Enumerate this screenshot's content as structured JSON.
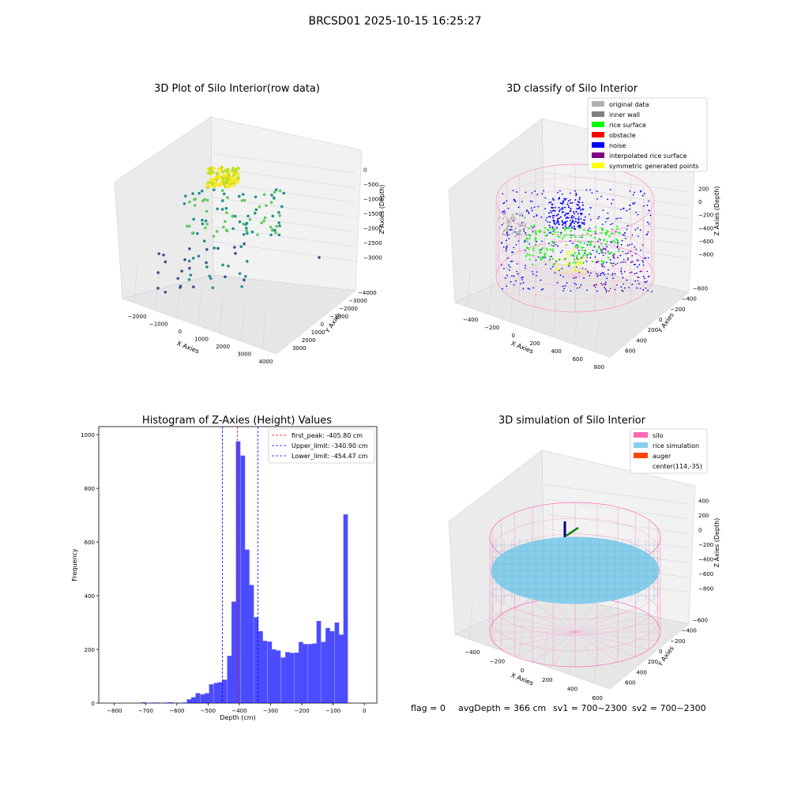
{
  "figure": {
    "title": "BRCSD01 2025-10-15 16:25:27",
    "footer": {
      "flag": "flag = 0",
      "avg_depth": "avgDepth = 366 cm",
      "sv1": "sv1 = 700~2300",
      "sv2": "sv2 = 700~2300"
    }
  },
  "chart_data": [
    {
      "type": "scatter",
      "projection": "3d",
      "title": "3D Plot of Silo Interior(row data)",
      "xlabel": "X Axies",
      "ylabel": "Y Axies",
      "zlabel": "Z Axies (Depth)",
      "x_ticks": [
        "−2000",
        "−1000",
        "0",
        "1000",
        "2000",
        "3000",
        "4000"
      ],
      "y_ticks": [
        "3000",
        "2000",
        "1000",
        "0",
        "−1000",
        "−2000",
        "−3000",
        "−4000"
      ],
      "z_ticks": [
        "0",
        "−500",
        "−1000",
        "−1500",
        "−2000",
        "−2500",
        "−3000"
      ],
      "xlim": [
        -2300,
        4100
      ],
      "ylim": [
        -4200,
        3500
      ],
      "zlim": [
        -3200,
        200
      ],
      "colormap": "viridis (low depth purple to high depth yellow)",
      "grid": true
    },
    {
      "type": "scatter",
      "projection": "3d",
      "title": "3D classify of Silo Interior",
      "xlabel": "X Axies",
      "ylabel": "Y Axies",
      "zlabel": "Z Axies (Depth)",
      "x_ticks": [
        "−400",
        "−200",
        "0",
        "200",
        "400",
        "600",
        "800"
      ],
      "y_ticks": [
        "600",
        "400",
        "200",
        "0",
        "−200",
        "−400",
        "−600"
      ],
      "z_ticks": [
        "200",
        "0",
        "−200",
        "−400",
        "−600",
        "−800"
      ],
      "z_ticks_partial": [
        "00"
      ],
      "xlim": [
        -500,
        800
      ],
      "ylim": [
        -650,
        650
      ],
      "zlim": [
        -900,
        400
      ],
      "legend": {
        "placement": "upper right",
        "entries": [
          {
            "label": "original data",
            "color": "#b0b0b0"
          },
          {
            "label": "inner wall",
            "color": "#808080"
          },
          {
            "label": "rice surface",
            "color": "#00ff00"
          },
          {
            "label": "obstacle",
            "color": "#ff0000"
          },
          {
            "label": "noise",
            "color": "#0000ff"
          },
          {
            "label": "interpolated rice surface",
            "color": "#800080"
          },
          {
            "label": "symmetric generated points",
            "color": "#ffff00"
          }
        ]
      },
      "grid": true
    },
    {
      "type": "bar",
      "title": "Histogram of Z-Axies (Height) Values",
      "xlabel": "Depth (cm)",
      "ylabel": "Frequency",
      "xlim": [
        -850,
        40
      ],
      "ylim": [
        0,
        1030
      ],
      "x_ticks": [
        "−800",
        "−700",
        "−600",
        "−500",
        "−400",
        "−300",
        "−200",
        "−100",
        "0"
      ],
      "y_ticks": [
        "0",
        "200",
        "400",
        "600",
        "800",
        "1000"
      ],
      "bar_color": "#0000ff",
      "bin_width": 14.3,
      "bins": [
        {
          "x": -712,
          "y": 3
        },
        {
          "x": -697,
          "y": 0
        },
        {
          "x": -683,
          "y": 2
        },
        {
          "x": -669,
          "y": 2
        },
        {
          "x": -654,
          "y": 0
        },
        {
          "x": -640,
          "y": 2
        },
        {
          "x": -626,
          "y": 3
        },
        {
          "x": -611,
          "y": 0
        },
        {
          "x": -597,
          "y": 1
        },
        {
          "x": -583,
          "y": 2
        },
        {
          "x": -568,
          "y": 14
        },
        {
          "x": -554,
          "y": 22
        },
        {
          "x": -540,
          "y": 37
        },
        {
          "x": -525,
          "y": 33
        },
        {
          "x": -511,
          "y": 37
        },
        {
          "x": -497,
          "y": 70
        },
        {
          "x": -482,
          "y": 75
        },
        {
          "x": -468,
          "y": 78
        },
        {
          "x": -454,
          "y": 87
        },
        {
          "x": -439,
          "y": 176
        },
        {
          "x": -425,
          "y": 378
        },
        {
          "x": -411,
          "y": 975
        },
        {
          "x": -396,
          "y": 922
        },
        {
          "x": -382,
          "y": 572
        },
        {
          "x": -368,
          "y": 440
        },
        {
          "x": -353,
          "y": 320
        },
        {
          "x": -339,
          "y": 268
        },
        {
          "x": -325,
          "y": 232
        },
        {
          "x": -310,
          "y": 229
        },
        {
          "x": -296,
          "y": 200
        },
        {
          "x": -282,
          "y": 196
        },
        {
          "x": -267,
          "y": 170
        },
        {
          "x": -253,
          "y": 190
        },
        {
          "x": -239,
          "y": 187
        },
        {
          "x": -224,
          "y": 188
        },
        {
          "x": -210,
          "y": 228
        },
        {
          "x": -196,
          "y": 220
        },
        {
          "x": -181,
          "y": 220
        },
        {
          "x": -167,
          "y": 222
        },
        {
          "x": -153,
          "y": 306
        },
        {
          "x": -138,
          "y": 228
        },
        {
          "x": -124,
          "y": 280
        },
        {
          "x": -110,
          "y": 268
        },
        {
          "x": -95,
          "y": 300
        },
        {
          "x": -81,
          "y": 255
        },
        {
          "x": -67,
          "y": 703
        }
      ],
      "vlines": [
        {
          "label": "first_peak: -405.80 cm",
          "x": -405.8,
          "color": "#ff0000"
        },
        {
          "label": "Upper_limit: -340.90 cm",
          "x": -340.9,
          "color": "#0000ff"
        },
        {
          "label": "Lower_limit: -454.47 cm",
          "x": -454.47,
          "color": "#0000ff"
        }
      ],
      "legend": {
        "placement": "upper right"
      },
      "grid": false
    },
    {
      "type": "surface",
      "projection": "3d",
      "title": "3D simulation of Silo Interior",
      "xlabel": "X Axies",
      "ylabel": "Y Axies",
      "zlabel": "Z Axies (Depth)",
      "x_ticks": [
        "−400",
        "−200",
        "0",
        "200",
        "400",
        "600"
      ],
      "y_ticks": [
        "600",
        "400",
        "200",
        "0",
        "−200",
        "−400",
        "−600"
      ],
      "z_ticks": [
        "400",
        "200",
        "0",
        "−200",
        "−400",
        "−600",
        "−800"
      ],
      "xlim": [
        -500,
        700
      ],
      "ylim": [
        -650,
        650
      ],
      "zlim": [
        -900,
        450
      ],
      "legend": {
        "placement": "upper right",
        "entries": [
          {
            "label": "silo",
            "color": "#ff69b4"
          },
          {
            "label": "rice simulation",
            "color": "#87ceeb"
          },
          {
            "label": "auger",
            "color": "#ff4500"
          },
          {
            "label": "center(114,-35)",
            "color": ""
          }
        ]
      },
      "grid": true
    }
  ]
}
